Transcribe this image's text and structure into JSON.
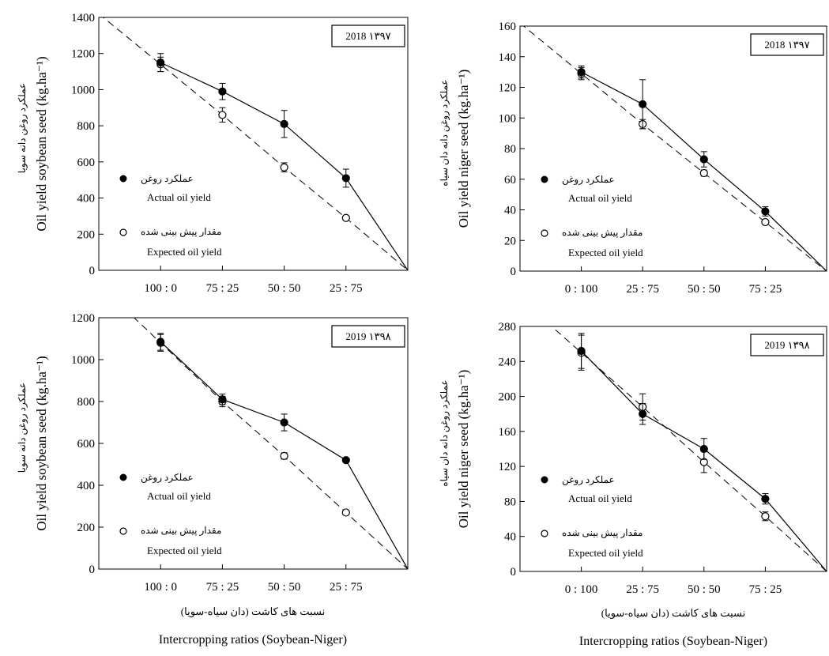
{
  "figure": {
    "x_caption_fa": "نسبت های کاشت (دان سیاه-سویا)",
    "x_caption": "Intercropping ratios (Soybean-Niger)"
  },
  "chart_data": [
    {
      "type": "line",
      "panel": "top-left",
      "year_label": "2018 ۱۳۹۷",
      "ylabel": "Oil yield soybean seed (kg.ha⁻¹)",
      "ylabel_fa": "عملکرد روغن دانه سویا",
      "ylim": [
        0,
        1400
      ],
      "yticks": [
        0,
        200,
        400,
        600,
        800,
        1000,
        1200,
        1400
      ],
      "categories": [
        "100 : 0",
        "75 : 25",
        "50 : 50",
        "25 : 75"
      ],
      "series": [
        {
          "name": "Actual oil yield",
          "name_fa": "عملکرد روغن",
          "marker": "filled-circle",
          "line": "solid",
          "values": [
            1150,
            990,
            810,
            510
          ],
          "errors": [
            50,
            45,
            75,
            50
          ]
        },
        {
          "name": "Expected oil yield",
          "name_fa": "مقدار پیش بینی شده",
          "marker": "open-circle",
          "line": "dashed",
          "values": [
            1140,
            860,
            570,
            290
          ],
          "errors": [
            40,
            40,
            25,
            10
          ]
        }
      ],
      "legend_position": "bottom-left"
    },
    {
      "type": "line",
      "panel": "top-right",
      "year_label": "2018 ۱۳۹۷",
      "ylabel": "Oil yield niger seed (kg.ha⁻¹)",
      "ylabel_fa": "عملکرد روغن دانه دان سیاه",
      "ylim": [
        0,
        160
      ],
      "yticks": [
        0,
        20,
        40,
        60,
        80,
        100,
        120,
        140,
        160
      ],
      "categories": [
        "0 : 100",
        "25 : 75",
        "50 : 50",
        "75 : 25"
      ],
      "series": [
        {
          "name": "Actual oil yield",
          "name_fa": "عملکرد روغن",
          "marker": "filled-circle",
          "line": "solid",
          "values": [
            130,
            109,
            73,
            39
          ],
          "errors": [
            4,
            16,
            5,
            3
          ]
        },
        {
          "name": "Expected oil yield",
          "name_fa": "مقدار پیش بینی شده",
          "marker": "open-circle",
          "line": "dashed",
          "values": [
            129,
            96,
            64,
            32
          ],
          "errors": [
            4,
            3,
            2,
            1
          ]
        }
      ],
      "legend_position": "bottom-left"
    },
    {
      "type": "line",
      "panel": "bottom-left",
      "year_label": "2019 ۱۳۹۸",
      "ylabel": "Oil yield soybean seed (kg.ha⁻¹)",
      "ylabel_fa": "عملکرد روغن دانه سویا",
      "ylim": [
        0,
        1200
      ],
      "yticks": [
        0,
        200,
        400,
        600,
        800,
        1000,
        1200
      ],
      "categories": [
        "100 : 0",
        "75 : 25",
        "50 : 50",
        "25 : 75"
      ],
      "series": [
        {
          "name": "Actual oil yield",
          "name_fa": "عملکرد روغن",
          "marker": "filled-circle",
          "line": "solid",
          "values": [
            1085,
            810,
            700,
            520
          ],
          "errors": [
            40,
            25,
            40,
            10
          ]
        },
        {
          "name": "Expected oil yield",
          "name_fa": "مقدار پیش بینی شده",
          "marker": "open-circle",
          "line": "dashed",
          "values": [
            1080,
            800,
            540,
            270
          ],
          "errors": [
            40,
            25,
            15,
            10
          ]
        }
      ],
      "legend_position": "bottom-left"
    },
    {
      "type": "line",
      "panel": "bottom-right",
      "year_label": "2019 ۱۳۹۸",
      "ylabel": "Oil yield niger seed (kg.ha⁻¹)",
      "ylabel_fa": "عملکرد روغن دانه دان سیاه",
      "ylim": [
        0,
        280
      ],
      "yticks": [
        0,
        40,
        80,
        120,
        160,
        200,
        240,
        280
      ],
      "categories": [
        "0 : 100",
        "25 : 75",
        "50 : 50",
        "75 : 25"
      ],
      "series": [
        {
          "name": "Actual oil yield",
          "name_fa": "عملکرد روغن",
          "marker": "filled-circle",
          "line": "solid",
          "values": [
            252,
            180,
            140,
            83
          ],
          "errors": [
            20,
            12,
            12,
            6
          ]
        },
        {
          "name": "Expected oil yield",
          "name_fa": "مقدار پیش بینی شده",
          "marker": "open-circle",
          "line": "dashed",
          "values": [
            250,
            188,
            125,
            63
          ],
          "errors": [
            20,
            15,
            12,
            5
          ]
        }
      ],
      "legend_position": "bottom-left"
    }
  ]
}
